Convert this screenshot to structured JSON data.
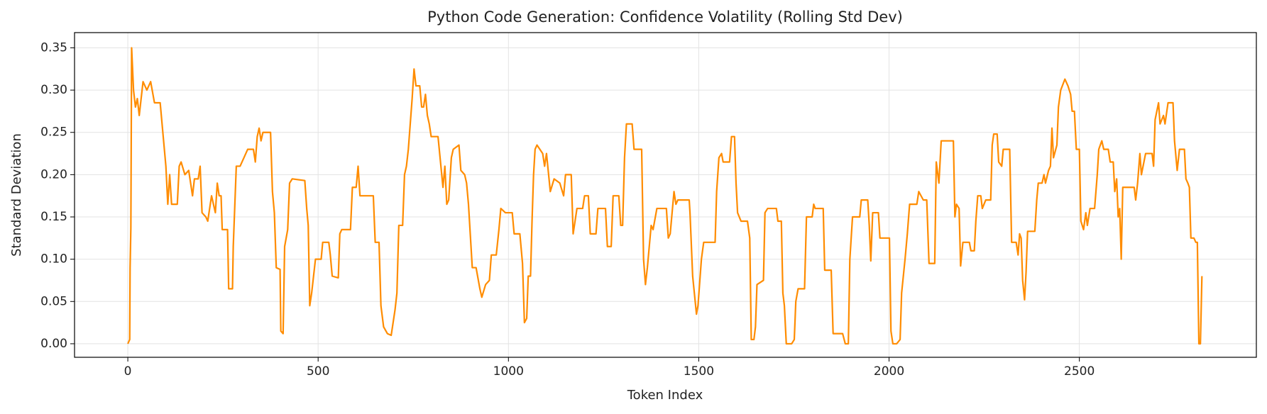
{
  "chart_data": {
    "type": "line",
    "title": "Python Code Generation: Confidence Volatility (Rolling Std Dev)",
    "xlabel": "Token Index",
    "ylabel": "Standard Deviation",
    "xlim": [
      -140,
      2965
    ],
    "ylim": [
      -0.016,
      0.368
    ],
    "xticks": [
      0,
      500,
      1000,
      1500,
      2000,
      2500
    ],
    "yticks": [
      {
        "value": 0,
        "label": "0.00"
      },
      0.05,
      {
        "value": 0.1,
        "label": "0.10"
      },
      0.15,
      {
        "value": 0.2,
        "label": "0.20"
      },
      0.25,
      {
        "value": 0.3,
        "label": "0.30"
      },
      0.35
    ],
    "grid": true,
    "x": [
      0,
      5,
      6,
      8,
      10,
      15,
      20,
      25,
      30,
      40,
      50,
      60,
      70,
      85,
      90,
      100,
      105,
      110,
      115,
      130,
      135,
      140,
      150,
      160,
      170,
      175,
      185,
      190,
      195,
      205,
      210,
      220,
      230,
      235,
      240,
      245,
      248,
      262,
      265,
      275,
      277,
      285,
      295,
      305,
      315,
      330,
      335,
      340,
      345,
      350,
      355,
      375,
      380,
      385,
      390,
      400,
      402,
      408,
      412,
      420,
      425,
      432,
      465,
      470,
      474,
      478,
      483,
      488,
      493,
      508,
      512,
      528,
      532,
      537,
      553,
      557,
      562,
      585,
      590,
      600,
      605,
      610,
      645,
      650,
      660,
      665,
      672,
      682,
      692,
      697,
      702,
      707,
      712,
      722,
      727,
      732,
      737,
      742,
      747,
      752,
      757,
      767,
      772,
      777,
      782,
      787,
      792,
      797,
      815,
      828,
      833,
      838,
      843,
      850,
      855,
      870,
      875,
      885,
      890,
      895,
      905,
      915,
      925,
      930,
      940,
      950,
      955,
      968,
      975,
      980,
      992,
      1010,
      1015,
      1030,
      1037,
      1042,
      1048,
      1052,
      1058,
      1062,
      1066,
      1070,
      1075,
      1090,
      1095,
      1100,
      1110,
      1120,
      1135,
      1145,
      1150,
      1165,
      1170,
      1180,
      1195,
      1200,
      1210,
      1215,
      1230,
      1235,
      1255,
      1260,
      1270,
      1275,
      1290,
      1295,
      1300,
      1305,
      1310,
      1325,
      1330,
      1350,
      1355,
      1360,
      1365,
      1375,
      1380,
      1390,
      1415,
      1420,
      1425,
      1435,
      1440,
      1445,
      1475,
      1477,
      1484,
      1494,
      1498,
      1507,
      1513,
      1543,
      1547,
      1553,
      1560,
      1564,
      1581,
      1586,
      1594,
      1598,
      1602,
      1611,
      1628,
      1634,
      1638,
      1645,
      1649,
      1653,
      1670,
      1674,
      1681,
      1704,
      1708,
      1717,
      1721,
      1725,
      1730,
      1744,
      1751,
      1755,
      1761,
      1778,
      1783,
      1798,
      1802,
      1806,
      1827,
      1831,
      1848,
      1853,
      1878,
      1885,
      1893,
      1897,
      1904,
      1923,
      1927,
      1944,
      1948,
      1952,
      1957,
      1972,
      1976,
      2001,
      2005,
      2010,
      2020,
      2029,
      2033,
      2042,
      2048,
      2054,
      2073,
      2078,
      2090,
      2099,
      2105,
      2120,
      2124,
      2131,
      2137,
      2169,
      2173,
      2177,
      2184,
      2188,
      2194,
      2211,
      2215,
      2224,
      2228,
      2233,
      2241,
      2245,
      2254,
      2267,
      2271,
      2275,
      2284,
      2288,
      2296,
      2300,
      2317,
      2322,
      2334,
      2339,
      2343,
      2347,
      2351,
      2356,
      2360,
      2364,
      2383,
      2388,
      2392,
      2402,
      2407,
      2411,
      2419,
      2424,
      2428,
      2432,
      2441,
      2445,
      2451,
      2462,
      2470,
      2477,
      2481,
      2487,
      2492,
      2500,
      2504,
      2511,
      2517,
      2521,
      2528,
      2540,
      2547,
      2551,
      2559,
      2564,
      2576,
      2581,
      2589,
      2593,
      2598,
      2602,
      2606,
      2610,
      2614,
      2644,
      2648,
      2653,
      2659,
      2663,
      2674,
      2691,
      2695,
      2699,
      2708,
      2712,
      2721,
      2725,
      2733,
      2746,
      2750,
      2757,
      2763,
      2776,
      2780,
      2785,
      2789,
      2793,
      2801,
      2806,
      2810,
      2814,
      2818,
      2822
    ],
    "series": [
      {
        "color": "#ff8c00",
        "values": [
          0,
          0.005,
          0.09,
          0.137,
          0.35,
          0.3,
          0.28,
          0.29,
          0.27,
          0.31,
          0.3,
          0.31,
          0.285,
          0.285,
          0.26,
          0.21,
          0.165,
          0.2,
          0.165,
          0.165,
          0.21,
          0.215,
          0.2,
          0.205,
          0.175,
          0.195,
          0.195,
          0.21,
          0.155,
          0.15,
          0.145,
          0.175,
          0.155,
          0.19,
          0.175,
          0.175,
          0.135,
          0.135,
          0.065,
          0.065,
          0.115,
          0.21,
          0.21,
          0.22,
          0.23,
          0.23,
          0.215,
          0.245,
          0.255,
          0.24,
          0.25,
          0.25,
          0.18,
          0.155,
          0.09,
          0.088,
          0.015,
          0.012,
          0.115,
          0.135,
          0.19,
          0.195,
          0.193,
          0.16,
          0.14,
          0.045,
          0.06,
          0.08,
          0.1,
          0.1,
          0.12,
          0.12,
          0.105,
          0.08,
          0.078,
          0.13,
          0.135,
          0.135,
          0.185,
          0.185,
          0.21,
          0.175,
          0.175,
          0.12,
          0.12,
          0.045,
          0.02,
          0.012,
          0.01,
          0.025,
          0.04,
          0.06,
          0.14,
          0.14,
          0.2,
          0.21,
          0.23,
          0.26,
          0.29,
          0.325,
          0.305,
          0.305,
          0.28,
          0.28,
          0.295,
          0.27,
          0.26,
          0.245,
          0.245,
          0.185,
          0.21,
          0.165,
          0.17,
          0.22,
          0.23,
          0.235,
          0.205,
          0.2,
          0.19,
          0.165,
          0.09,
          0.09,
          0.065,
          0.055,
          0.07,
          0.075,
          0.105,
          0.105,
          0.135,
          0.16,
          0.155,
          0.155,
          0.13,
          0.13,
          0.095,
          0.025,
          0.03,
          0.08,
          0.08,
          0.145,
          0.2,
          0.23,
          0.235,
          0.225,
          0.21,
          0.225,
          0.18,
          0.195,
          0.19,
          0.175,
          0.2,
          0.2,
          0.13,
          0.16,
          0.16,
          0.175,
          0.175,
          0.13,
          0.13,
          0.16,
          0.16,
          0.115,
          0.115,
          0.175,
          0.175,
          0.14,
          0.14,
          0.22,
          0.26,
          0.26,
          0.23,
          0.23,
          0.1,
          0.07,
          0.09,
          0.14,
          0.135,
          0.16,
          0.16,
          0.125,
          0.13,
          0.18,
          0.165,
          0.17,
          0.17,
          0.155,
          0.08,
          0.035,
          0.045,
          0.1,
          0.12,
          0.12,
          0.18,
          0.22,
          0.225,
          0.215,
          0.215,
          0.245,
          0.245,
          0.19,
          0.155,
          0.145,
          0.145,
          0.125,
          0.005,
          0.005,
          0.02,
          0.07,
          0.075,
          0.155,
          0.16,
          0.16,
          0.145,
          0.145,
          0.06,
          0.045,
          0,
          0,
          0.005,
          0.05,
          0.065,
          0.065,
          0.15,
          0.15,
          0.165,
          0.16,
          0.16,
          0.087,
          0.087,
          0.012,
          0.012,
          0,
          0,
          0.1,
          0.15,
          0.15,
          0.17,
          0.17,
          0.14,
          0.098,
          0.155,
          0.155,
          0.125,
          0.125,
          0.015,
          0,
          0,
          0.005,
          0.06,
          0.1,
          0.13,
          0.165,
          0.165,
          0.18,
          0.17,
          0.17,
          0.095,
          0.095,
          0.215,
          0.19,
          0.24,
          0.24,
          0.15,
          0.165,
          0.16,
          0.092,
          0.12,
          0.12,
          0.11,
          0.11,
          0.145,
          0.175,
          0.175,
          0.16,
          0.17,
          0.17,
          0.235,
          0.248,
          0.248,
          0.215,
          0.21,
          0.23,
          0.23,
          0.12,
          0.12,
          0.105,
          0.13,
          0.125,
          0.075,
          0.052,
          0.085,
          0.133,
          0.133,
          0.17,
          0.19,
          0.19,
          0.2,
          0.19,
          0.205,
          0.21,
          0.255,
          0.22,
          0.235,
          0.28,
          0.3,
          0.313,
          0.305,
          0.295,
          0.275,
          0.275,
          0.23,
          0.23,
          0.145,
          0.135,
          0.155,
          0.14,
          0.16,
          0.16,
          0.2,
          0.23,
          0.24,
          0.23,
          0.23,
          0.215,
          0.215,
          0.18,
          0.195,
          0.15,
          0.16,
          0.1,
          0.185,
          0.185,
          0.17,
          0.19,
          0.225,
          0.2,
          0.225,
          0.225,
          0.21,
          0.265,
          0.285,
          0.26,
          0.27,
          0.26,
          0.285,
          0.285,
          0.24,
          0.205,
          0.23,
          0.23,
          0.195,
          0.19,
          0.185,
          0.125,
          0.125,
          0.12,
          0.12,
          0,
          0,
          0.08
        ]
      }
    ]
  }
}
